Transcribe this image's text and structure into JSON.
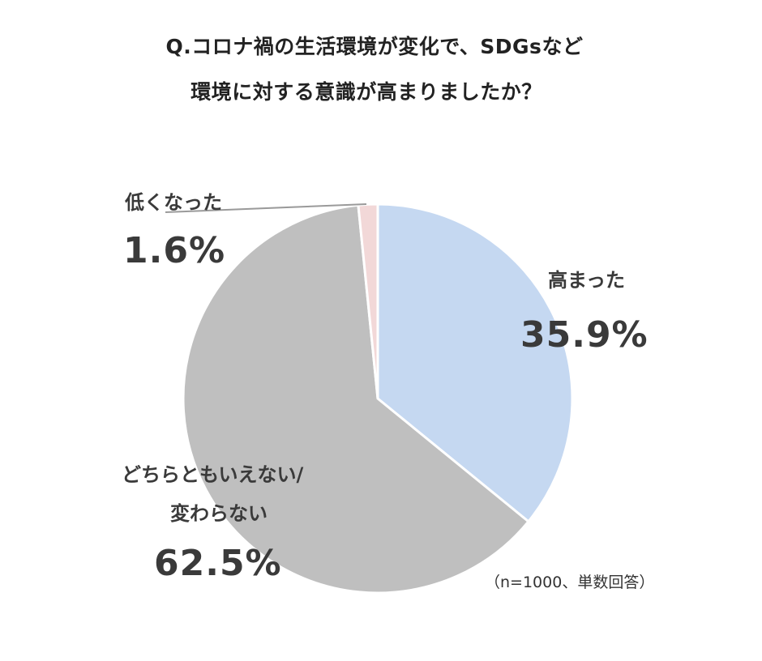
{
  "title": {
    "line1": "Q.コロナ禍の生活環境が変化で、SDGsなど",
    "line2": "環境に対する意識が高まりましたか？"
  },
  "note": "（n=1000、単数回答）",
  "chart_data": {
    "type": "pie",
    "start_angle_deg": 0,
    "direction": "clockwise",
    "slices": [
      {
        "label": "高まった",
        "value": 35.9,
        "value_label": "35.9%",
        "color": "#c5d8f1"
      },
      {
        "label": "どちらともいえない/",
        "label2": "変わらない",
        "value": 62.5,
        "value_label": "62.5%",
        "color": "#bfbfbf"
      },
      {
        "label": "低くなった",
        "value": 1.6,
        "value_label": "1.6%",
        "color": "#f2d8d8"
      }
    ]
  }
}
